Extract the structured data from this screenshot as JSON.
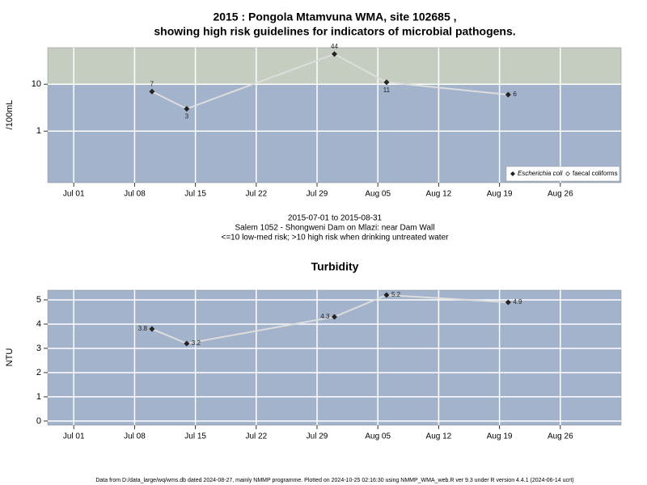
{
  "chart_data": [
    {
      "type": "line",
      "title": [
        "2015 : Pongola Mtamvuna WMA, site 102685 ,",
        "showing high risk guidelines for indicators of microbial pathogens."
      ],
      "subtitle": [
        "2015-07-01 to 2015-08-31",
        "Salem 1052 - Shongweni Dam on Mlazi: near Dam Wall",
        "<=10 low-med risk; >10 high risk when drinking untreated water"
      ],
      "y_label": "/100mL",
      "log_scale": true,
      "threshold": 10,
      "band_colors": [
        "#a3b3cb",
        "#c4cdbf"
      ],
      "x": [
        "2015-07-10",
        "2015-07-14",
        "2015-07-31",
        "2015-08-06",
        "2015-08-20"
      ],
      "series": [
        {
          "name": "Escherichia coli",
          "color": "#dddddd",
          "marker_color": "#222222",
          "values": [
            7,
            3,
            44,
            11,
            6
          ]
        },
        {
          "name": "faecal coliforms",
          "color": "#dddddd",
          "marker_color": "#222222",
          "values": [
            null,
            null,
            null,
            null,
            null
          ]
        }
      ],
      "legend": "bottom-right",
      "xlim": [
        "2015-06-28",
        "2015-09-02"
      ],
      "xticks": [
        {
          "value": "2015-07-01",
          "label": "Jul 01"
        },
        {
          "value": "2015-07-08",
          "label": "Jul 08"
        },
        {
          "value": "2015-07-15",
          "label": "Jul 15"
        },
        {
          "value": "2015-07-22",
          "label": "Jul 22"
        },
        {
          "value": "2015-07-29",
          "label": "Jul 29"
        },
        {
          "value": "2015-08-05",
          "label": "Aug 05"
        },
        {
          "value": "2015-08-12",
          "label": "Aug 12"
        },
        {
          "value": "2015-08-19",
          "label": "Aug 19"
        },
        {
          "value": "2015-08-26",
          "label": "Aug 26"
        }
      ],
      "ylim": [
        0.08,
        60
      ],
      "yticks": [
        1,
        10
      ],
      "grid": true
    },
    {
      "type": "line",
      "title": [
        "Turbidity"
      ],
      "y_label": "NTU",
      "log_scale": false,
      "band_colors": [
        "#a3b3cb"
      ],
      "x": [
        "2015-07-10",
        "2015-07-14",
        "2015-07-31",
        "2015-08-06",
        "2015-08-20"
      ],
      "series": [
        {
          "name": "Turbidity",
          "color": "#dddddd",
          "marker_color": "#222222",
          "values": [
            3.8,
            3.2,
            4.3,
            5.2,
            4.9
          ]
        }
      ],
      "xlim": [
        "2015-06-28",
        "2015-09-02"
      ],
      "xticks": [
        {
          "value": "2015-07-01",
          "label": "Jul 01"
        },
        {
          "value": "2015-07-08",
          "label": "Jul 08"
        },
        {
          "value": "2015-07-15",
          "label": "Jul 15"
        },
        {
          "value": "2015-07-22",
          "label": "Jul 22"
        },
        {
          "value": "2015-07-29",
          "label": "Jul 29"
        },
        {
          "value": "2015-08-05",
          "label": "Aug 05"
        },
        {
          "value": "2015-08-12",
          "label": "Aug 12"
        },
        {
          "value": "2015-08-19",
          "label": "Aug 19"
        },
        {
          "value": "2015-08-26",
          "label": "Aug 26"
        }
      ],
      "ylim": [
        -0.17,
        5.4
      ],
      "yticks": [
        0,
        1,
        2,
        3,
        4,
        5
      ],
      "grid": true
    }
  ],
  "footer": "Data from D:/data_large/wq/wms.db dated 2024-08-27, mainly NMMP programme. Plotted on 2024-10-25 02:16:30 using NMMP_WMA_web.R ver 9.3 under R version 4.4.1 (2024-06-14 ucrt)"
}
